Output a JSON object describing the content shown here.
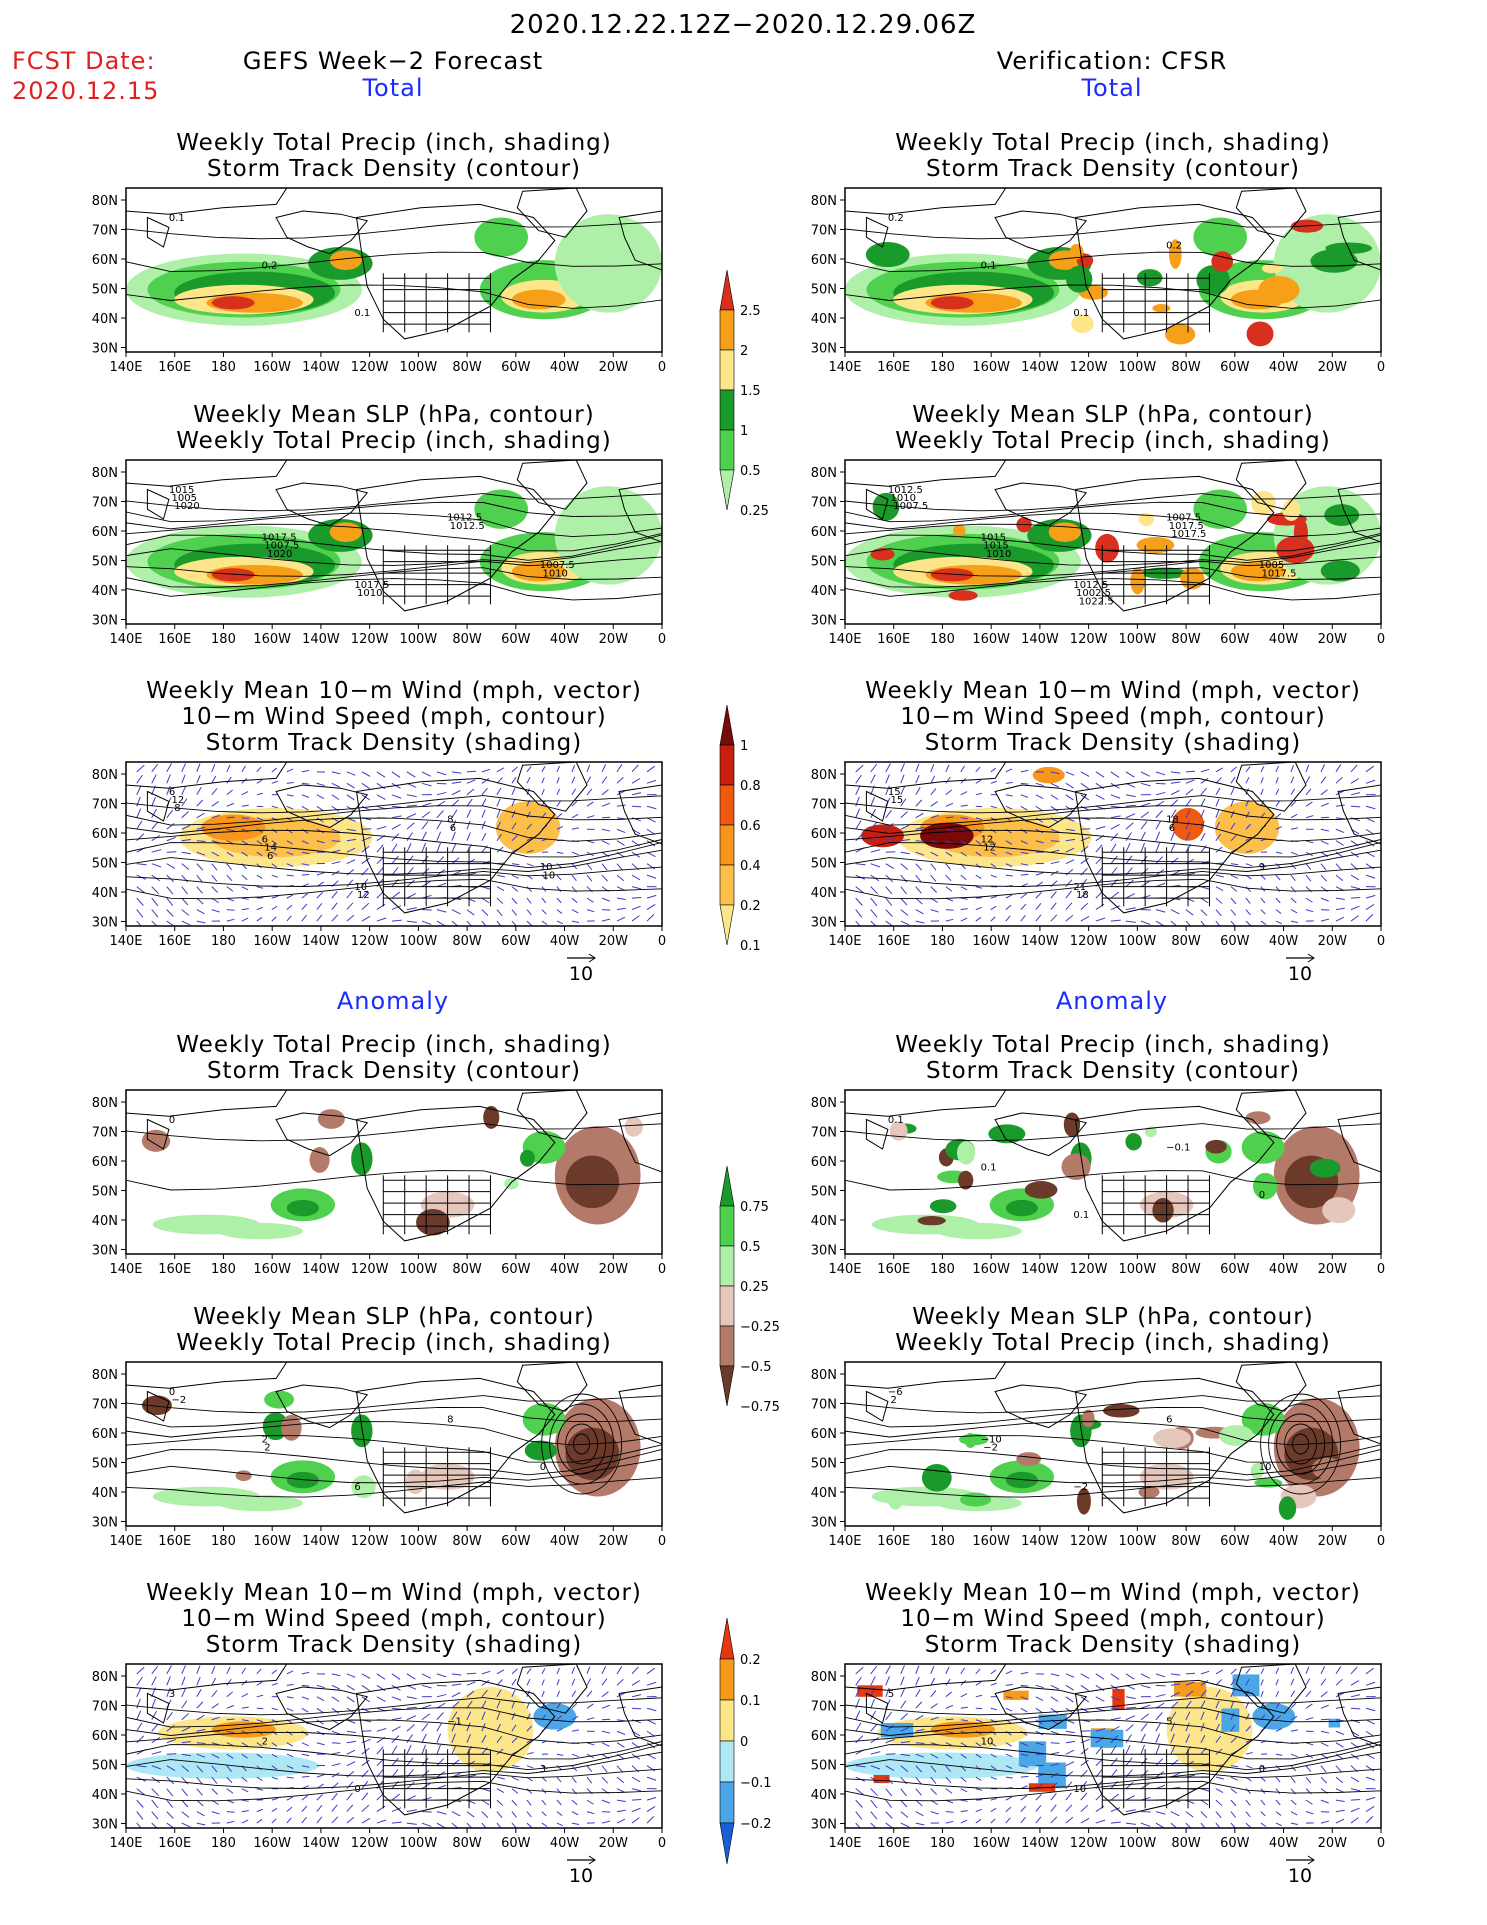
{
  "header": {
    "date_range": "2020.12.22.12Z−2020.12.29.06Z",
    "fcst_label": "FCST Date:",
    "fcst_date": "2020.12.15",
    "left_heading": "GEFS Week−2 Forecast",
    "right_heading": "Verification: CFSR"
  },
  "sections": {
    "total": "Total",
    "anomaly": "Anomaly"
  },
  "panel_titles": {
    "precip_storm": [
      "Weekly Total Precip (inch, shading)",
      "Storm Track Density (contour)"
    ],
    "slp_precip": [
      "Weekly Mean SLP (hPa, contour)",
      "Weekly Total Precip (inch, shading)"
    ],
    "wind_storm": [
      "Weekly Mean 10−m Wind (mph, vector)",
      "10−m Wind Speed (mph, contour)",
      "Storm Track Density (shading)"
    ]
  },
  "axes": {
    "lat_labels": [
      "80N",
      "70N",
      "60N",
      "50N",
      "40N",
      "30N"
    ],
    "lon_labels": [
      "140E",
      "160E",
      "180",
      "160W",
      "140W",
      "120W",
      "100W",
      "80W",
      "60W",
      "40W",
      "20W",
      "0"
    ]
  },
  "vector_scale": "10",
  "colorbars": {
    "precip_total": {
      "labels": [
        "2.5",
        "2",
        "1.5",
        "1",
        "0.5",
        "0.25"
      ],
      "colors": [
        "#d7301f",
        "#f6a01a",
        "#fde68a",
        "#1a9a2a",
        "#4fd14f",
        "#aef0a8"
      ]
    },
    "storm_total": {
      "labels": [
        "1",
        "0.8",
        "0.6",
        "0.4",
        "0.2",
        "0.1"
      ],
      "colors": [
        "#7a0a0a",
        "#c81e0e",
        "#f05a0e",
        "#f7951c",
        "#fbbf4a",
        "#fde68a"
      ]
    },
    "precip_anom": {
      "labels": [
        "0.75",
        "0.5",
        "0.25",
        "−0.25",
        "−0.5",
        "−0.75"
      ],
      "colors": [
        "#1a9a2a",
        "#4fd14f",
        "#aef0a8",
        "#e6c7bc",
        "#b47a69",
        "#6b3a2a"
      ]
    },
    "storm_anom": {
      "labels": [
        "0.2",
        "0.1",
        "0",
        "−0.1",
        "−0.2"
      ],
      "colors": [
        "#e4380e",
        "#f59a1a",
        "#fde68a",
        "#aee8f4",
        "#4aa6e6",
        "#1a5fd6"
      ]
    }
  },
  "panels": [
    {
      "name": "fcst-total-precip-storm",
      "col": "left",
      "row": 1,
      "kind": "precip",
      "contour_labels": [
        "0.1",
        "0.2",
        "0.1"
      ]
    },
    {
      "name": "verif-total-precip-storm",
      "col": "right",
      "row": 1,
      "kind": "precip",
      "contour_labels": [
        "0.2",
        "0.1",
        "0.1",
        "0.2"
      ]
    },
    {
      "name": "fcst-total-slp-precip",
      "col": "left",
      "row": 2,
      "kind": "precip",
      "contour_labels": [
        "1015",
        "1017.5",
        "1017.5",
        "1012.5",
        "1007.5",
        "1005",
        "1007.5",
        "1010",
        "1012.5",
        "1010",
        "1020",
        "1020"
      ]
    },
    {
      "name": "verif-total-slp-precip",
      "col": "right",
      "row": 2,
      "kind": "precip",
      "contour_labels": [
        "1012.5",
        "1015",
        "1012.5",
        "1007.5",
        "1005",
        "1010",
        "1015",
        "1002.5",
        "1017.5",
        "1017.5",
        "1007.5",
        "1010",
        "1022.5",
        "1017.5"
      ]
    },
    {
      "name": "fcst-total-wind-storm",
      "col": "left",
      "row": 3,
      "kind": "wind",
      "contour_labels": [
        "6",
        "6",
        "10",
        "8",
        "10",
        "12",
        "14",
        "12",
        "6",
        "10",
        "8",
        "6"
      ]
    },
    {
      "name": "verif-total-wind-storm",
      "col": "right",
      "row": 3,
      "kind": "wind",
      "contour_labels": [
        "15",
        "12",
        "21",
        "18",
        "9",
        "15",
        "12",
        "18",
        "6"
      ]
    },
    {
      "name": "fcst-anom-precip-storm",
      "col": "left",
      "row": 4,
      "kind": "anom",
      "contour_labels": [
        "0"
      ]
    },
    {
      "name": "verif-anom-precip-storm",
      "col": "right",
      "row": 4,
      "kind": "anom",
      "contour_labels": [
        "0.1",
        "0.1",
        "0.1",
        "−0.1",
        "0"
      ]
    },
    {
      "name": "fcst-anom-slp-precip",
      "col": "left",
      "row": 5,
      "kind": "anom",
      "contour_labels": [
        "0",
        "2",
        "6",
        "8",
        "0",
        "−2",
        "2"
      ]
    },
    {
      "name": "verif-anom-slp-precip",
      "col": "right",
      "row": 5,
      "kind": "anom",
      "contour_labels": [
        "−6",
        "−10",
        "−2",
        "6",
        "10",
        "2",
        "−2"
      ]
    },
    {
      "name": "fcst-anom-wind-storm",
      "col": "left",
      "row": 6,
      "kind": "windanom",
      "contour_labels": [
        "3",
        "2",
        "0",
        "−1",
        "3"
      ]
    },
    {
      "name": "verif-anom-wind-storm",
      "col": "right",
      "row": 6,
      "kind": "windanom",
      "contour_labels": [
        "5",
        "10",
        "10",
        "5",
        "0"
      ]
    }
  ],
  "palette": {
    "land": "#000000",
    "contour": "#000000",
    "vector": "#3a3acc",
    "title_red": "#e02020",
    "title_blue": "#1a2cff"
  }
}
